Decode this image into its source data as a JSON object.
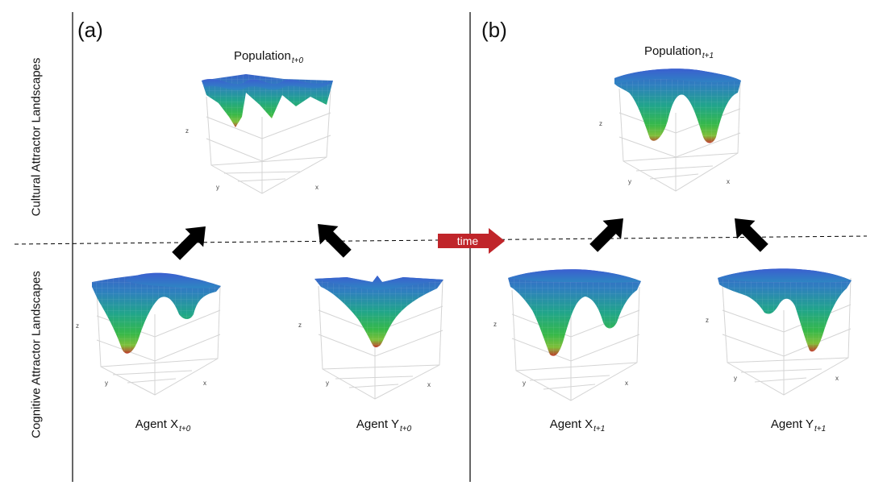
{
  "panels": {
    "a": "(a)",
    "b": "(b)"
  },
  "side_labels": {
    "top": "Cultural Attractor Landscapes",
    "bottom": "Cognitive Attractor Landscapes"
  },
  "time_label": "time",
  "captions": {
    "pop_a": {
      "base": "Population",
      "sub": "t+0"
    },
    "pop_b": {
      "base": "Population",
      "sub": "t+1"
    },
    "agent_x_a": {
      "base": "Agent X",
      "sub": "t+0"
    },
    "agent_y_a": {
      "base": "Agent Y",
      "sub": "t+0"
    },
    "agent_x_b": {
      "base": "Agent X",
      "sub": "t+1"
    },
    "agent_y_b": {
      "base": "Agent Y",
      "sub": "t+1"
    }
  },
  "axis_letters": {
    "x": "x",
    "y": "y",
    "z": "z"
  },
  "colors": {
    "surface_top": "#2f6fc0",
    "surface_mid": "#2aa070",
    "surface_low": "#5cc84a",
    "surface_bottom": "#c0392b",
    "arrow": "#000000",
    "time_arrow": "#c0252a",
    "grid": "#d4d4d4"
  }
}
